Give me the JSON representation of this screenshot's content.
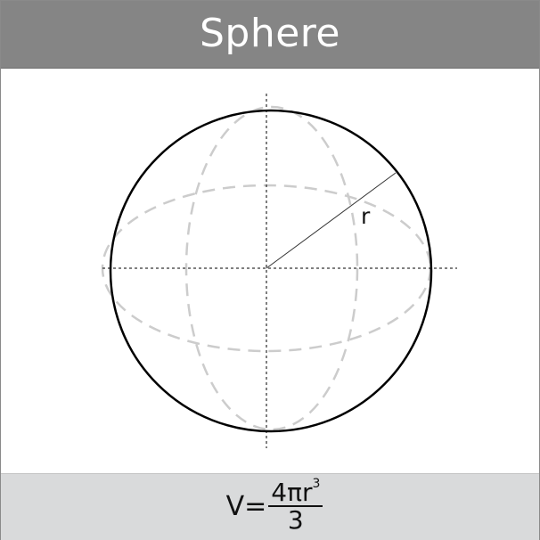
{
  "title": "Sphere",
  "radius_label": "r",
  "formula": {
    "lhs": "V=",
    "numerator": "4πr",
    "exponent": "3",
    "denominator": "3"
  },
  "colors": {
    "header_bg": "#858585",
    "footer_bg": "#d9dadb",
    "outline": "#000000",
    "dashed_guides": "#cccccc"
  }
}
